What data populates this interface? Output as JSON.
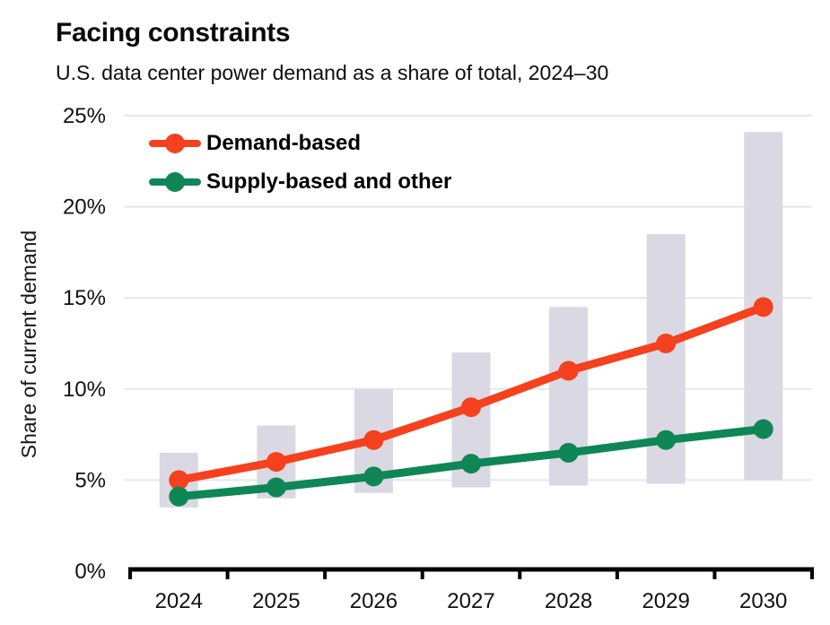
{
  "chart_data": {
    "type": "line",
    "title": "Facing constraints",
    "subtitle": "U.S. data center power demand as a share of total, 2024–30",
    "categories": [
      "2024",
      "2025",
      "2026",
      "2027",
      "2028",
      "2029",
      "2030"
    ],
    "series": [
      {
        "id": "demand",
        "name": "Demand-based",
        "color": "#F5411D",
        "values": [
          5.0,
          6.0,
          7.2,
          9.0,
          11.0,
          12.5,
          14.5
        ]
      },
      {
        "id": "supply",
        "name": "Supply-based and other",
        "color": "#0E8656",
        "values": [
          4.1,
          4.6,
          5.2,
          5.9,
          6.5,
          7.2,
          7.8
        ]
      }
    ],
    "range_bars": {
      "id": "range",
      "color": "#DAD8E2",
      "low": [
        3.5,
        4.0,
        4.3,
        4.6,
        4.7,
        4.8,
        5.0
      ],
      "high": [
        6.5,
        8.0,
        10.0,
        12.0,
        14.5,
        18.5,
        24.1
      ]
    },
    "xlabel": "",
    "ylabel": "Share of current demand",
    "yticks": [
      "0%",
      "5%",
      "10%",
      "15%",
      "20%",
      "25%"
    ],
    "ylim": [
      0,
      25
    ],
    "grid": true,
    "gridline_color": "#E8E7EA",
    "axis_color": "#000000",
    "text_color": "#111111",
    "legend_position": "top-left"
  }
}
